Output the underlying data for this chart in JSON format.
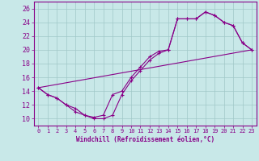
{
  "xlabel": "Windchill (Refroidissement éolien,°C)",
  "bg_color": "#c8e8e8",
  "grid_color": "#a0c8c8",
  "line_color": "#880088",
  "xlim": [
    -0.5,
    23.5
  ],
  "ylim": [
    9,
    27
  ],
  "xticks": [
    0,
    1,
    2,
    3,
    4,
    5,
    6,
    7,
    8,
    9,
    10,
    11,
    12,
    13,
    14,
    15,
    16,
    17,
    18,
    19,
    20,
    21,
    22,
    23
  ],
  "yticks": [
    10,
    12,
    14,
    16,
    18,
    20,
    22,
    24,
    26
  ],
  "line1_x": [
    0,
    1,
    2,
    3,
    4,
    5,
    6,
    7,
    8,
    9,
    10,
    11,
    12,
    13,
    14,
    15,
    16,
    17,
    18,
    19,
    20,
    21,
    22,
    23
  ],
  "line1_y": [
    14.5,
    13.5,
    13.0,
    12.0,
    11.0,
    10.5,
    10.0,
    10.0,
    10.5,
    13.5,
    15.5,
    17.0,
    18.5,
    19.5,
    20.0,
    24.5,
    24.5,
    24.5,
    25.5,
    25.0,
    24.0,
    23.5,
    21.0,
    20.0
  ],
  "line2_x": [
    0,
    1,
    2,
    3,
    4,
    5,
    6,
    7,
    8,
    9,
    10,
    11,
    12,
    13,
    14,
    15,
    16,
    17,
    18,
    19,
    20,
    21,
    22,
    23
  ],
  "line2_y": [
    14.5,
    13.5,
    13.0,
    12.0,
    11.5,
    10.5,
    10.2,
    10.5,
    13.5,
    14.0,
    16.0,
    17.5,
    19.0,
    19.8,
    20.0,
    24.5,
    24.5,
    24.5,
    25.5,
    25.0,
    24.0,
    23.5,
    21.0,
    20.0
  ],
  "line3_x": [
    0,
    23
  ],
  "line3_y": [
    14.5,
    20.0
  ]
}
